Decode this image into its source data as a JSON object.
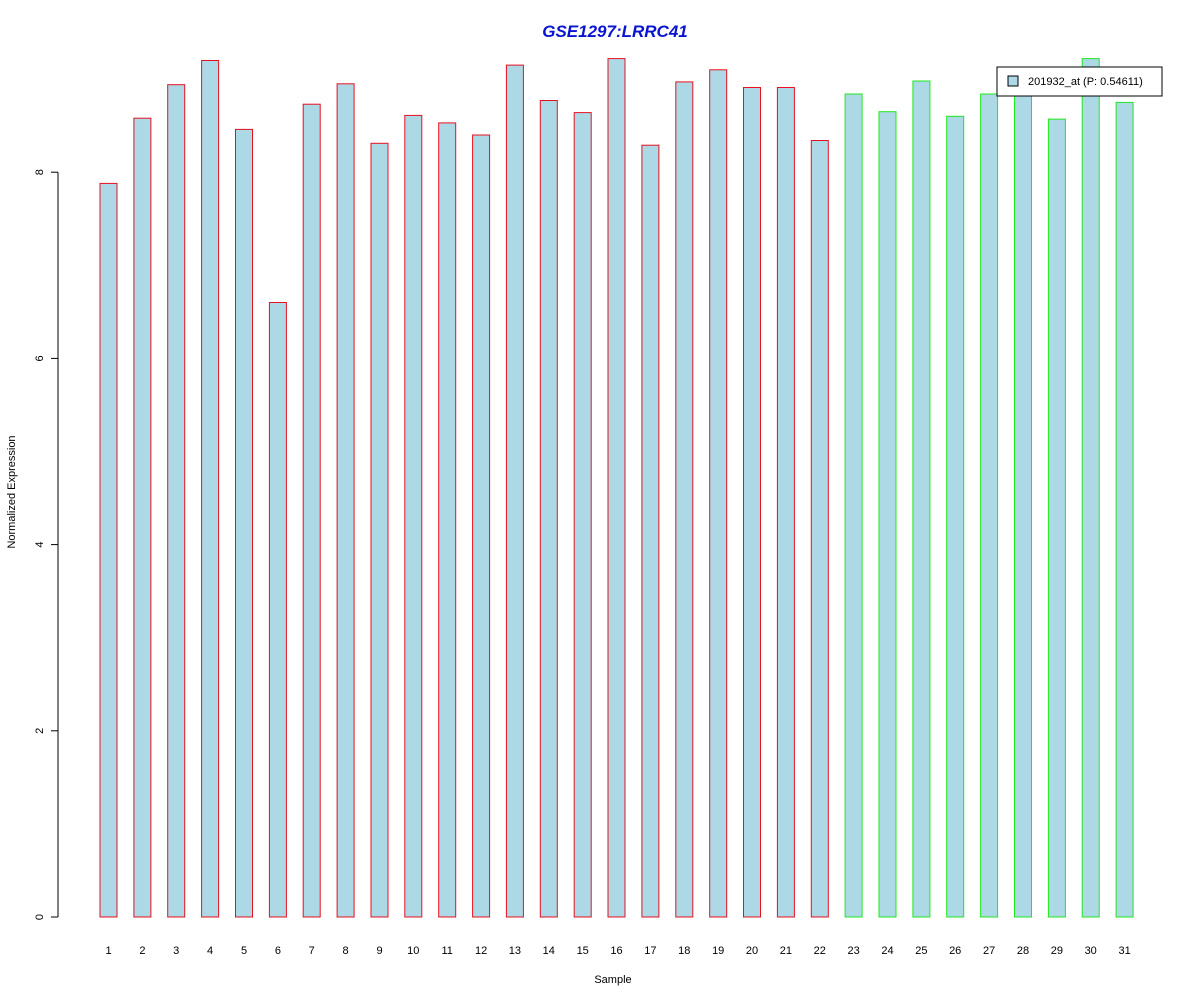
{
  "chart_data": {
    "type": "bar",
    "title": "GSE1297:LRRC41",
    "xlabel": "Sample",
    "ylabel": "Normalized Expression",
    "ylim": [
      0,
      9.2
    ],
    "yticks": [
      "0",
      "2",
      "4",
      "6",
      "8"
    ],
    "categories": [
      "1",
      "2",
      "3",
      "4",
      "5",
      "6",
      "7",
      "8",
      "9",
      "10",
      "11",
      "12",
      "13",
      "14",
      "15",
      "16",
      "17",
      "18",
      "19",
      "20",
      "21",
      "22",
      "23",
      "24",
      "25",
      "26",
      "27",
      "28",
      "29",
      "30",
      "31"
    ],
    "values": [
      7.88,
      8.58,
      8.94,
      9.2,
      8.46,
      6.6,
      8.73,
      8.95,
      8.31,
      8.61,
      8.53,
      8.4,
      9.15,
      8.77,
      8.64,
      9.22,
      8.29,
      8.97,
      9.1,
      8.91,
      8.91,
      8.34,
      8.84,
      8.65,
      8.98,
      8.6,
      8.84,
      8.86,
      8.57,
      9.22,
      8.75
    ],
    "group_border": [
      "red",
      "red",
      "red",
      "red",
      "red",
      "red",
      "red",
      "red",
      "red",
      "red",
      "red",
      "red",
      "red",
      "red",
      "red",
      "red",
      "red",
      "red",
      "red",
      "red",
      "red",
      "red",
      "green",
      "green",
      "green",
      "green",
      "green",
      "green",
      "green",
      "green",
      "green"
    ],
    "legend": {
      "label": "201932_at (P: 0.54611)",
      "position": "top-right"
    },
    "colors": {
      "fill": "#add8e6",
      "red": "#e8101f",
      "green": "#1ee81e",
      "title": "#0a14d0"
    }
  }
}
